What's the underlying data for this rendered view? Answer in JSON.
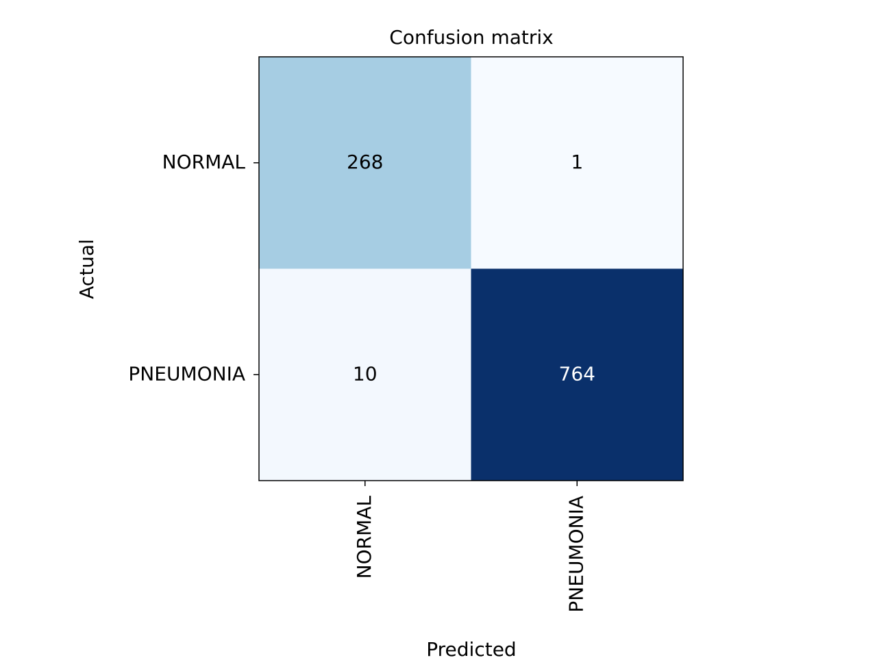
{
  "chart_data": {
    "type": "heatmap",
    "title": "Confusion matrix",
    "xlabel": "Predicted",
    "ylabel": "Actual",
    "x_categories": [
      "NORMAL",
      "PNEUMONIA"
    ],
    "y_categories": [
      "NORMAL",
      "PNEUMONIA"
    ],
    "values": [
      [
        268,
        1
      ],
      [
        10,
        764
      ]
    ],
    "colormap": "Blues",
    "vmin": 1,
    "vmax": 764,
    "cell_colors": [
      [
        "#a6cde3",
        "#f6faff"
      ],
      [
        "#f3f8fe",
        "#0a306b"
      ]
    ],
    "text_colors": [
      [
        "#000000",
        "#000000"
      ],
      [
        "#000000",
        "#ffffff"
      ]
    ],
    "grid": false,
    "legend": "none"
  }
}
